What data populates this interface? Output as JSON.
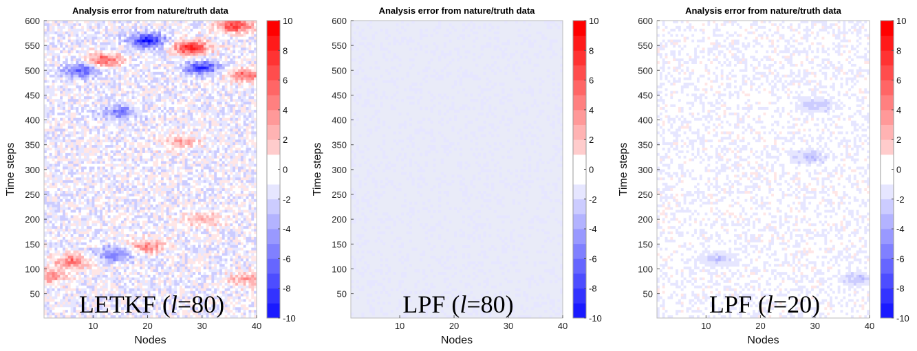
{
  "chart_data": [
    {
      "type": "heatmap",
      "title": "Analysis error from nature/truth data",
      "xlabel": "Nodes",
      "ylabel": "Time steps",
      "xlim": [
        1,
        40
      ],
      "ylim": [
        1,
        600
      ],
      "xticks": [
        10,
        20,
        30,
        40
      ],
      "yticks": [
        50,
        100,
        150,
        200,
        250,
        300,
        350,
        400,
        450,
        500,
        550,
        600
      ],
      "colorbar": {
        "range": [
          -10,
          10
        ],
        "ticks": [
          -10,
          -8,
          -6,
          -4,
          -2,
          0,
          2,
          4,
          6,
          8,
          10
        ],
        "colors": {
          "negative": "#0000ff",
          "zero": "#ffffff",
          "positive": "#ff0000"
        }
      },
      "annotation": {
        "prefix": "LETKF (",
        "italic": "l",
        "suffix": "=80)"
      },
      "error_amplitude": 0.38,
      "hotspots": [
        {
          "node": 28,
          "step": 545,
          "value": 9
        },
        {
          "node": 20,
          "step": 560,
          "value": -8
        },
        {
          "node": 36,
          "step": 590,
          "value": 8
        },
        {
          "node": 12,
          "step": 520,
          "value": 7
        },
        {
          "node": 30,
          "step": 505,
          "value": -7
        },
        {
          "node": 38,
          "step": 490,
          "value": 6
        },
        {
          "node": 8,
          "step": 500,
          "value": -6
        },
        {
          "node": 15,
          "step": 415,
          "value": -5
        },
        {
          "node": 26,
          "step": 355,
          "value": 4
        },
        {
          "node": 20,
          "step": 145,
          "value": 5
        },
        {
          "node": 6,
          "step": 115,
          "value": 6
        },
        {
          "node": 14,
          "step": 130,
          "value": -5
        },
        {
          "node": 30,
          "step": 200,
          "value": 4
        },
        {
          "node": 2,
          "step": 85,
          "value": 5
        },
        {
          "node": 38,
          "step": 80,
          "value": 4
        }
      ]
    },
    {
      "type": "heatmap",
      "title": "Analysis error from nature/truth data",
      "xlabel": "Nodes",
      "ylabel": "Time steps",
      "xlim": [
        1,
        40
      ],
      "ylim": [
        1,
        600
      ],
      "xticks": [
        10,
        20,
        30,
        40
      ],
      "yticks": [
        50,
        100,
        150,
        200,
        250,
        300,
        350,
        400,
        450,
        500,
        550,
        600
      ],
      "colorbar": {
        "range": [
          -10,
          10
        ],
        "ticks": [
          -10,
          -8,
          -6,
          -4,
          -2,
          0,
          2,
          4,
          6,
          8,
          10
        ],
        "colors": {
          "negative": "#0000ff",
          "zero": "#ffffff",
          "positive": "#ff0000"
        }
      },
      "annotation": {
        "prefix": "LPF (",
        "italic": "l",
        "suffix": "=80)"
      },
      "error_amplitude": 0.12,
      "hotspots": []
    },
    {
      "type": "heatmap",
      "title": "Analysis error from nature/truth data",
      "xlabel": "Nodes",
      "ylabel": "Time steps",
      "xlim": [
        1,
        40
      ],
      "ylim": [
        1,
        600
      ],
      "xticks": [
        10,
        20,
        30,
        40
      ],
      "yticks": [
        50,
        100,
        150,
        200,
        250,
        300,
        350,
        400,
        450,
        500,
        550,
        600
      ],
      "colorbar": {
        "range": [
          -10,
          10
        ],
        "ticks": [
          -10,
          -8,
          -6,
          -4,
          -2,
          0,
          2,
          4,
          6,
          8,
          10
        ],
        "colors": {
          "negative": "#0000ff",
          "zero": "#ffffff",
          "positive": "#ff0000"
        }
      },
      "annotation": {
        "prefix": "LPF (",
        "italic": "l",
        "suffix": "=20)"
      },
      "error_amplitude": 0.16,
      "hotspots": [
        {
          "node": 30,
          "step": 430,
          "value": -2
        },
        {
          "node": 38,
          "step": 80,
          "value": -2
        },
        {
          "node": 12,
          "step": 120,
          "value": -2
        },
        {
          "node": 29,
          "step": 325,
          "value": -2
        }
      ]
    }
  ]
}
